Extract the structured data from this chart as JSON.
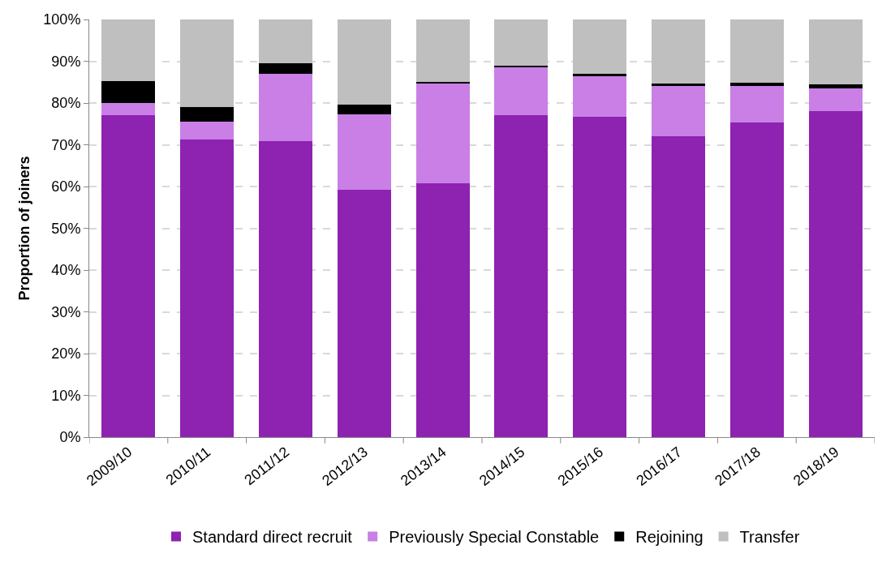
{
  "chart_data": {
    "type": "bar",
    "stacked": true,
    "ylabel": "Proportion of joiners",
    "categories": [
      "2009/10",
      "2010/11",
      "2011/12",
      "2012/13",
      "2013/14",
      "2014/15",
      "2015/16",
      "2016/17",
      "2017/18",
      "2018/19"
    ],
    "series": [
      {
        "name": "Standard direct recruit",
        "color": "#8e22b1",
        "values": [
          77,
          71.3,
          70.9,
          59.2,
          60.7,
          77.1,
          76.7,
          72,
          75.3,
          78
        ]
      },
      {
        "name": "Previously Special Constable",
        "color": "#c97fe5",
        "values": [
          3,
          4.2,
          16.1,
          18.1,
          23.9,
          11.5,
          9.7,
          12,
          8.7,
          5.5
        ]
      },
      {
        "name": "Rejoining",
        "color": "#000000",
        "values": [
          5.3,
          3.5,
          2.6,
          2.3,
          0.4,
          0.4,
          0.5,
          0.7,
          0.8,
          0.9
        ]
      },
      {
        "name": "Transfer",
        "color": "#bfbfbf",
        "values": [
          14.7,
          21,
          10.4,
          20.4,
          15,
          11,
          13.1,
          15.3,
          15.2,
          15.6
        ]
      }
    ],
    "ylim": [
      0,
      100
    ],
    "yticks": [
      {
        "value": 0,
        "label": "0%"
      },
      {
        "value": 10,
        "label": "10%"
      },
      {
        "value": 20,
        "label": "20%"
      },
      {
        "value": 30,
        "label": "30%"
      },
      {
        "value": 40,
        "label": "40%"
      },
      {
        "value": 50,
        "label": "50%"
      },
      {
        "value": 60,
        "label": "60%"
      },
      {
        "value": 70,
        "label": "70%"
      },
      {
        "value": 80,
        "label": "80%"
      },
      {
        "value": 90,
        "label": "90%"
      },
      {
        "value": 100,
        "label": "100%"
      }
    ],
    "grid": "y",
    "legend": "bottom"
  }
}
